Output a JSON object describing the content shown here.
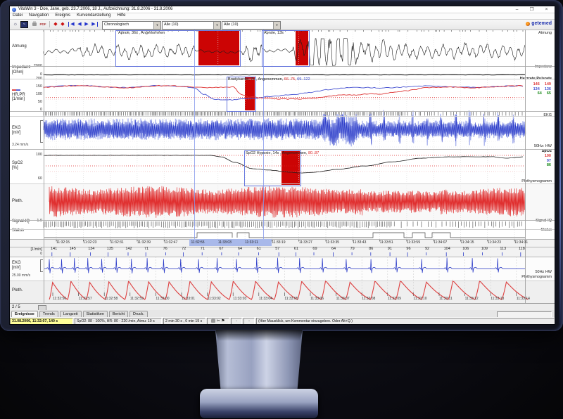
{
  "window": {
    "title": "VitaWin 3 - Doe, Jane, geb. 23.7.2006, 18 J., Aufzeichnung: 31.8.2006 - 31.8.2006",
    "minimize": "–",
    "maximize": "❐",
    "close": "×"
  },
  "menu": {
    "items": [
      "Datei",
      "Navigation",
      "Ereignis",
      "Kurvendarstellung",
      "Hilfe"
    ]
  },
  "toolbar": {
    "pdf": "PDF",
    "combos": [
      "Chronologisch",
      "Alle (10)",
      "Alle (10)"
    ],
    "brand": "getemed"
  },
  "left_labels": {
    "atmung": "Atmung",
    "impedanz_1": "Impedanz",
    "impedanz_2": "[Ohm]",
    "imp_axis_top": "2000",
    "imp_axis_bottom": "0",
    "hr_1": "HR,PR",
    "hr_2": "[1/min]",
    "hr_axis": [
      "200",
      "150",
      "100",
      "50",
      "0"
    ],
    "ekg_1": "EKG",
    "ekg_2": "[mV]",
    "ekg_speed": "3.24 mm/s",
    "spo2_1": "SpO2",
    "spo2_2": "[%]",
    "spo2_axis_top": "100",
    "spo2_axis_bottom": "60",
    "pleth": "Pleth.",
    "signaliq": "Signal-IQ",
    "signaliq_scale": "1.0",
    "status": "Status"
  },
  "right_labels": {
    "atmung": "Atmung",
    "impedanz": "Impedanz",
    "hr_title": "Herzrate,Pulsrate",
    "hr_values": [
      {
        "a": "146",
        "b": "149",
        "color": "red"
      },
      {
        "a": "134",
        "b": "136",
        "color": "blue"
      },
      {
        "a": "64",
        "b": "65",
        "color": "green"
      }
    ],
    "ekg": "EKG",
    "spo2_note": "50Hz: HW",
    "spo2_title": "SpO2",
    "spo2_values": [
      {
        "v": "100",
        "color": "red"
      },
      {
        "v": "97",
        "color": "blue"
      },
      {
        "v": "86",
        "color": "green"
      }
    ],
    "pleth": "Plethysmogramm",
    "signaliq": "Signal-IQ",
    "status": "Status"
  },
  "annotations": {
    "apnoe1": "Apnoe, 36s , Angenommen",
    "apnoe2": "Apnoe, 13s",
    "brady_text": "Bradykardie, 7s , Angenommen, ",
    "brady_v1": "66..75, ",
    "brady_v2": "69..122",
    "hypox_text": "SpO2 Hypoxie, 14s , Angenommen, ",
    "hypox_v1": "80..87"
  },
  "time_axis": {
    "ticks": [
      "11:32:15",
      "11:32:23",
      "11:32:31",
      "11:32:39",
      "11:32:47",
      "11:32:55",
      "11:33:03",
      "11:33:11",
      "11:33:19",
      "11:33:27",
      "11:33:35",
      "11:33:43",
      "11:33:51",
      "11:33:59",
      "11:34:07",
      "11:34:15",
      "11:34:23",
      "11:34:31"
    ]
  },
  "beat_row": {
    "label": "[1/min]",
    "zero": "0",
    "values": [
      "141",
      "145",
      "134",
      "135",
      "142",
      "71",
      "76",
      "72",
      "71",
      "67",
      "64",
      "61",
      "57",
      "61",
      "69",
      "64",
      "79",
      "86",
      "91",
      "96",
      "92",
      "104",
      "106",
      "109",
      "113",
      "118"
    ]
  },
  "lower_panel": {
    "ekg_1": "EKG",
    "ekg_2": "[mV]",
    "speed": "25.00 mm/s",
    "pleth": "Pleth.",
    "right_note": "50Hz HW",
    "right_pleth": "Plethysmogramm",
    "ticks": [
      "11:32:56",
      "11:32:57",
      "11:32:58",
      "11:32:59",
      "11:33:00",
      "11:33:01",
      "11:33:02",
      "11:33:03",
      "11:33:04",
      "11:33:05",
      "11:33:06",
      "11:33:07",
      "11:33:08",
      "11:33:09",
      "11:33:10",
      "11:33:11",
      "11:33:12",
      "11:33:13",
      "11:33:14"
    ]
  },
  "pager": {
    "label": "2 / 5"
  },
  "tabs": {
    "items": [
      "Ereignisse",
      "Trends",
      "Langzeit",
      "Statistiken",
      "Bericht",
      "Druck."
    ]
  },
  "statusbar": {
    "time": "31.08.2006, 11:32:07, 140 s",
    "limits": "SpO2: 88 - 100%, HR: 80 - 220 /min, Atmu: 10 s",
    "durations": "2 min 30 s , 0 min 19 s",
    "dash1": "-",
    "dash2": "-",
    "hint": "(Hier Mausklick, um Kommentar einzugeben. Oder Alt+Q.)"
  },
  "colors": {
    "signal_black": "#1c1c1c",
    "signal_blue": "#2b3bc8",
    "signal_blue_halo": "#aab4ee",
    "signal_red": "#e03030",
    "hr_red": "#dd3333",
    "hr_blue": "#4450d0",
    "value_green": "#1a8a1a",
    "threshold": "#dd2222",
    "threshold_faint": "#ee9999",
    "event_fill": "#cc0404",
    "event_border": "#6677dd",
    "highlight": "#a9b9ea",
    "grid": "#dcdcdc",
    "cursor": "#8fa0e8"
  }
}
